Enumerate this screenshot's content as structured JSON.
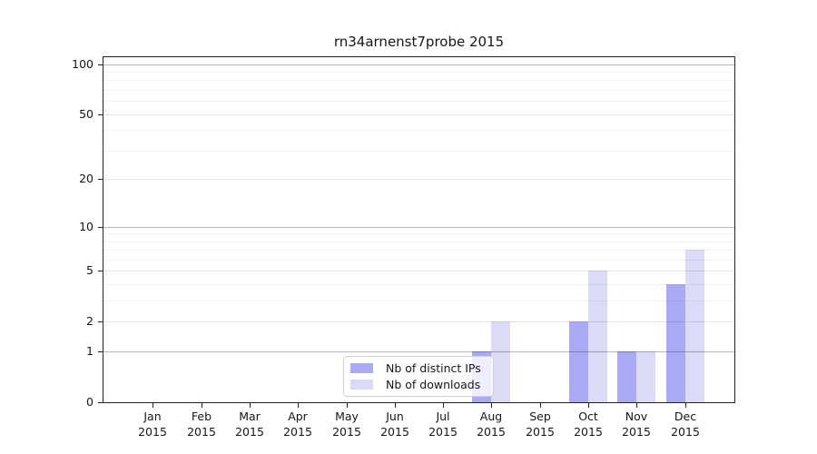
{
  "title": "rn34arnenst7probe 2015",
  "colors": {
    "bar_distinct_ips": "#a9a9f4",
    "bar_downloads": "#dbdbf8",
    "grid_unit": "rgba(0,0,0,0.28)",
    "grid_major": "rgba(0,0,0,0.10)",
    "grid_minor": "rgba(0,0,0,0.05)",
    "axis": "#222222",
    "text": "#161616"
  },
  "chart_data": {
    "type": "bar",
    "title": "rn34arnenst7probe 2015",
    "categories": [
      "Jan 2015",
      "Feb 2015",
      "Mar 2015",
      "Apr 2015",
      "May 2015",
      "Jun 2015",
      "Jul 2015",
      "Aug 2015",
      "Sep 2015",
      "Oct 2015",
      "Nov 2015",
      "Dec 2015"
    ],
    "series": [
      {
        "name": "Nb of distinct IPs",
        "color": "#a9a9f4",
        "values": [
          0,
          0,
          0,
          0,
          0,
          0,
          0,
          1,
          0,
          2,
          1,
          4
        ]
      },
      {
        "name": "Nb of downloads",
        "color": "#dbdbf8",
        "values": [
          0,
          0,
          0,
          0,
          0,
          0,
          0,
          2,
          0,
          5,
          1,
          7
        ]
      }
    ],
    "y_scale": "log10(1+y)",
    "ylim": [
      0,
      110
    ],
    "y_ticks": [
      0,
      1,
      2,
      5,
      10,
      20,
      50,
      100
    ],
    "y_unit_ticks": [
      1,
      10,
      100
    ],
    "y_minor_ticks": [
      3,
      4,
      6,
      7,
      8,
      9,
      30,
      40,
      60,
      70,
      80,
      90
    ],
    "xlabel": "",
    "ylabel": "",
    "grid": true,
    "legend_position": "lower center"
  }
}
